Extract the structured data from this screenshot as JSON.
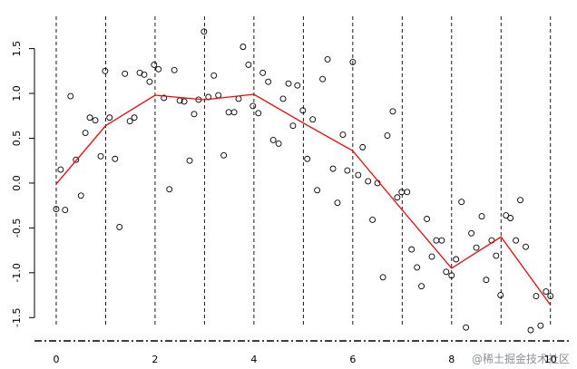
{
  "chart_data": {
    "type": "scatter",
    "xlim": [
      -0.44,
      10.39
    ],
    "ylim": [
      -1.75,
      1.86
    ],
    "xticks": [
      0,
      2,
      4,
      6,
      8,
      10
    ],
    "yticks": [
      -1.5,
      -1.0,
      -0.5,
      0.0,
      0.5,
      1.0,
      1.5
    ],
    "ytick_labels": [
      "-1.5",
      "-1.0",
      "-0.5",
      "0.0",
      "0.5",
      "1.0",
      "1.5"
    ],
    "knots": [
      0,
      1,
      2,
      3,
      4,
      5,
      6,
      7,
      8,
      9,
      10
    ],
    "points": {
      "color": "#000000",
      "x": [
        0.0,
        0.09,
        0.18,
        0.29,
        0.4,
        0.5,
        0.59,
        0.68,
        0.79,
        0.9,
        0.99,
        1.08,
        1.19,
        1.28,
        1.39,
        1.49,
        1.58,
        1.69,
        1.78,
        1.89,
        1.98,
        2.07,
        2.18,
        2.29,
        2.39,
        2.5,
        2.59,
        2.7,
        2.79,
        2.88,
        2.99,
        3.08,
        3.19,
        3.28,
        3.39,
        3.49,
        3.6,
        3.69,
        3.78,
        3.89,
        3.98,
        4.09,
        4.18,
        4.29,
        4.39,
        4.5,
        4.59,
        4.7,
        4.79,
        4.88,
        4.99,
        5.08,
        5.19,
        5.28,
        5.39,
        5.49,
        5.6,
        5.69,
        5.8,
        5.89,
        6.0,
        6.11,
        6.2,
        6.31,
        6.4,
        6.5,
        6.61,
        6.7,
        6.81,
        6.9,
        6.99,
        7.1,
        7.19,
        7.3,
        7.39,
        7.5,
        7.6,
        7.69,
        7.8,
        7.89,
        8.0,
        8.09,
        8.2,
        8.29,
        8.4,
        8.5,
        8.61,
        8.7,
        8.81,
        8.9,
        8.99,
        9.1,
        9.19,
        9.3,
        9.39,
        9.5,
        9.6,
        9.71,
        9.8,
        9.91,
        10.0
      ],
      "values": [
        -0.29,
        0.15,
        -0.3,
        0.97,
        0.26,
        -0.14,
        0.56,
        0.73,
        0.7,
        0.3,
        1.25,
        0.73,
        0.27,
        -0.49,
        1.22,
        0.69,
        0.73,
        1.23,
        1.21,
        1.13,
        1.32,
        1.27,
        0.95,
        -0.07,
        1.26,
        0.92,
        0.91,
        0.25,
        0.77,
        0.93,
        1.69,
        0.96,
        1.2,
        0.98,
        0.31,
        0.79,
        0.79,
        0.94,
        1.52,
        1.32,
        0.86,
        0.78,
        1.23,
        1.13,
        0.48,
        0.44,
        0.94,
        1.11,
        0.64,
        1.09,
        0.81,
        0.27,
        0.71,
        -0.08,
        1.16,
        1.38,
        0.16,
        -0.22,
        0.54,
        0.14,
        1.35,
        0.09,
        0.4,
        0.02,
        -0.41,
        0.0,
        -1.05,
        0.53,
        0.8,
        -0.16,
        -0.1,
        -0.1,
        -0.74,
        -0.94,
        -1.15,
        -0.4,
        -0.82,
        -0.64,
        -0.64,
        -0.99,
        -1.03,
        -0.85,
        -0.21,
        -1.61,
        -0.56,
        -0.72,
        -0.37,
        -1.08,
        -0.64,
        -0.81,
        -1.25,
        -0.36,
        -0.39,
        -0.64,
        -0.19,
        -0.71,
        -1.64,
        -1.26,
        -1.59,
        -1.21,
        -1.26
      ]
    },
    "fit": {
      "color": "#ff0000",
      "x": [
        0,
        1,
        2,
        3,
        4,
        5,
        6,
        7,
        8,
        9,
        10
      ],
      "values": [
        -0.01,
        0.64,
        0.98,
        0.93,
        0.99,
        0.67,
        0.36,
        -0.3,
        -0.95,
        -0.6,
        -1.36
      ]
    },
    "watermark": "@稀土掘金技术社区"
  }
}
